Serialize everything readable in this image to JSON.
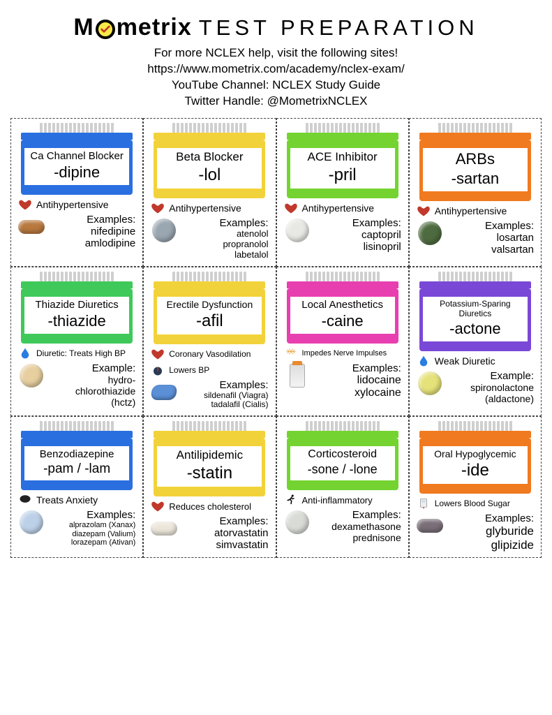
{
  "header": {
    "brand_left": "M",
    "brand_right": "metrix",
    "brand_suffix": "TEST PREPARATION",
    "lines": [
      "For more NCLEX help, visit the following sites!",
      "https://www.mometrix.com/academy/nclex-exam/",
      "YouTube Channel: NCLEX Study Guide",
      "Twitter Handle: @MometrixNCLEX"
    ]
  },
  "cards": [
    {
      "class_name": "Ca Channel Blocker",
      "suffix": "-dipine",
      "cap_color": "#2a6fe0",
      "body_color": "#2a6fe0",
      "stripe_color": "#2a6fe0",
      "action_icon": "heart",
      "action_text": "Antihypertensive",
      "pill_shape": "caplet",
      "pill_color": "#b9793f",
      "examples_title": "Examples:",
      "examples": [
        "nifedipine",
        "amlodipine"
      ],
      "class_fs": 15,
      "suffix_fs": 22,
      "ex_fs": 15
    },
    {
      "class_name": "Beta Blocker",
      "suffix": "-lol",
      "cap_color": "#f2d23a",
      "body_color": "#f2d23a",
      "stripe_color": "#f2d23a",
      "action_icon": "heart",
      "action_text": "Antihypertensive",
      "pill_shape": "round",
      "pill_color": "#9aa6b0",
      "examples_title": "Examples:",
      "examples": [
        "atenolol",
        "propranolol",
        "labetalol"
      ],
      "class_fs": 17,
      "suffix_fs": 24,
      "ex_fs": 13
    },
    {
      "class_name": "ACE Inhibitor",
      "suffix": "-pril",
      "cap_color": "#74d331",
      "body_color": "#74d331",
      "stripe_color": "#74d331",
      "action_icon": "heart",
      "action_text": "Antihypertensive",
      "pill_shape": "round",
      "pill_color": "#e8e8e4",
      "examples_title": "Examples:",
      "examples": [
        "captopril",
        "lisinopril"
      ],
      "class_fs": 17,
      "suffix_fs": 24,
      "ex_fs": 15
    },
    {
      "class_name": "ARBs",
      "suffix": "-sartan",
      "cap_color": "#f07a1f",
      "body_color": "#f07a1f",
      "stripe_color": "#f07a1f",
      "action_icon": "heart",
      "action_text": "Antihypertensive",
      "pill_shape": "round",
      "pill_color": "#4e6b3f",
      "examples_title": "Examples:",
      "examples": [
        "losartan",
        "valsartan"
      ],
      "class_fs": 22,
      "suffix_fs": 22,
      "ex_fs": 15
    },
    {
      "class_name": "Thiazide Diuretics",
      "suffix": "-thiazide",
      "cap_color": "#3fc95a",
      "body_color": "#3fc95a",
      "stripe_color": "#3fc95a",
      "action_icon": "drop",
      "action_text": "Diuretic: Treats High BP",
      "pill_shape": "round",
      "pill_color": "#e7cfa0",
      "examples_title": "Example:",
      "examples": [
        "hydro-",
        "chlorothiazide",
        "(hctz)"
      ],
      "class_fs": 15,
      "suffix_fs": 22,
      "ex_fs": 14,
      "action_fs": 12
    },
    {
      "class_name": "Erectile Dysfunction",
      "suffix": "-afil",
      "cap_color": "#f2d23a",
      "body_color": "#f2d23a",
      "stripe_color": "#f2d23a",
      "action_icon": "heart",
      "action_text": "Coronary Vasodilation",
      "action2_icon": "gauge",
      "action2_text": "Lowers BP",
      "pill_shape": "diamond",
      "pill_color": "#5b8fd6",
      "examples_title": "Examples:",
      "examples": [
        "sildenafil (Viagra)",
        "tadalafil (Cialis)"
      ],
      "class_fs": 14,
      "suffix_fs": 24,
      "ex_fs": 12,
      "action_fs": 12
    },
    {
      "class_name": "Local Anesthetics",
      "suffix": "-caine",
      "cap_color": "#e83fb0",
      "body_color": "#e83fb0",
      "stripe_color": "#e83fb0",
      "action_icon": "nerve",
      "action_text": "Impedes Nerve Impulses",
      "pill_shape": "vial",
      "pill_color": "#eeeeee",
      "examples_title": "Examples:",
      "examples": [
        "lidocaine",
        "xylocaine"
      ],
      "class_fs": 15,
      "suffix_fs": 22,
      "ex_fs": 16,
      "action_fs": 11
    },
    {
      "class_name": "Potassium-Sparing Diuretics",
      "suffix": "-actone",
      "cap_color": "#7a48d6",
      "body_color": "#7a48d6",
      "stripe_color": "#7a48d6",
      "action_icon": "drop",
      "action_text": "Weak Diuretic",
      "pill_shape": "round",
      "pill_color": "#e5e27a",
      "examples_title": "Example:",
      "examples": [
        "spironolactone",
        "(aldactone)"
      ],
      "class_fs": 12,
      "suffix_fs": 22,
      "ex_fs": 14
    },
    {
      "class_name": "Benzodiazepine",
      "suffix": "-pam / -lam",
      "cap_color": "#2a6fe0",
      "body_color": "#2a6fe0",
      "stripe_color": "#2a6fe0",
      "action_icon": "brain",
      "action_text": "Treats Anxiety",
      "pill_shape": "round",
      "pill_color": "#bcd1e8",
      "examples_title": "Examples:",
      "examples": [
        "alprazolam (Xanax)",
        "diazepam (Valium)",
        "lorazepam (Ativan)"
      ],
      "class_fs": 15,
      "suffix_fs": 19,
      "ex_fs": 11
    },
    {
      "class_name": "Antilipidemic",
      "suffix": "-statin",
      "cap_color": "#f2d23a",
      "body_color": "#f2d23a",
      "stripe_color": "#f2d23a",
      "action_icon": "heart",
      "action_text": "Reduces cholesterol",
      "pill_shape": "caplet",
      "pill_color": "#ece6da",
      "examples_title": "Examples:",
      "examples": [
        "atorvastatin",
        "simvastatin"
      ],
      "class_fs": 17,
      "suffix_fs": 24,
      "ex_fs": 15,
      "action_fs": 13
    },
    {
      "class_name": "Corticosteroid",
      "suffix": "-sone / -lone",
      "cap_color": "#74d331",
      "body_color": "#74d331",
      "stripe_color": "#74d331",
      "action_icon": "runner",
      "action_text": "Anti-inflammatory",
      "pill_shape": "round",
      "pill_color": "#d9dbd6",
      "examples_title": "Examples:",
      "examples": [
        "dexamethasone",
        "prednisone"
      ],
      "class_fs": 16,
      "suffix_fs": 18,
      "ex_fs": 14,
      "action_fs": 13
    },
    {
      "class_name": "Oral Hypoglycemic",
      "suffix": "-ide",
      "cap_color": "#f07a1f",
      "body_color": "#f07a1f",
      "stripe_color": "#f07a1f",
      "action_icon": "meter",
      "action_text": "Lowers Blood Sugar",
      "pill_shape": "caplet",
      "pill_color": "#7a6f78",
      "examples_title": "Examples:",
      "examples": [
        "glyburide",
        "glipizide"
      ],
      "class_fs": 14,
      "suffix_fs": 24,
      "ex_fs": 17,
      "action_fs": 12
    }
  ]
}
